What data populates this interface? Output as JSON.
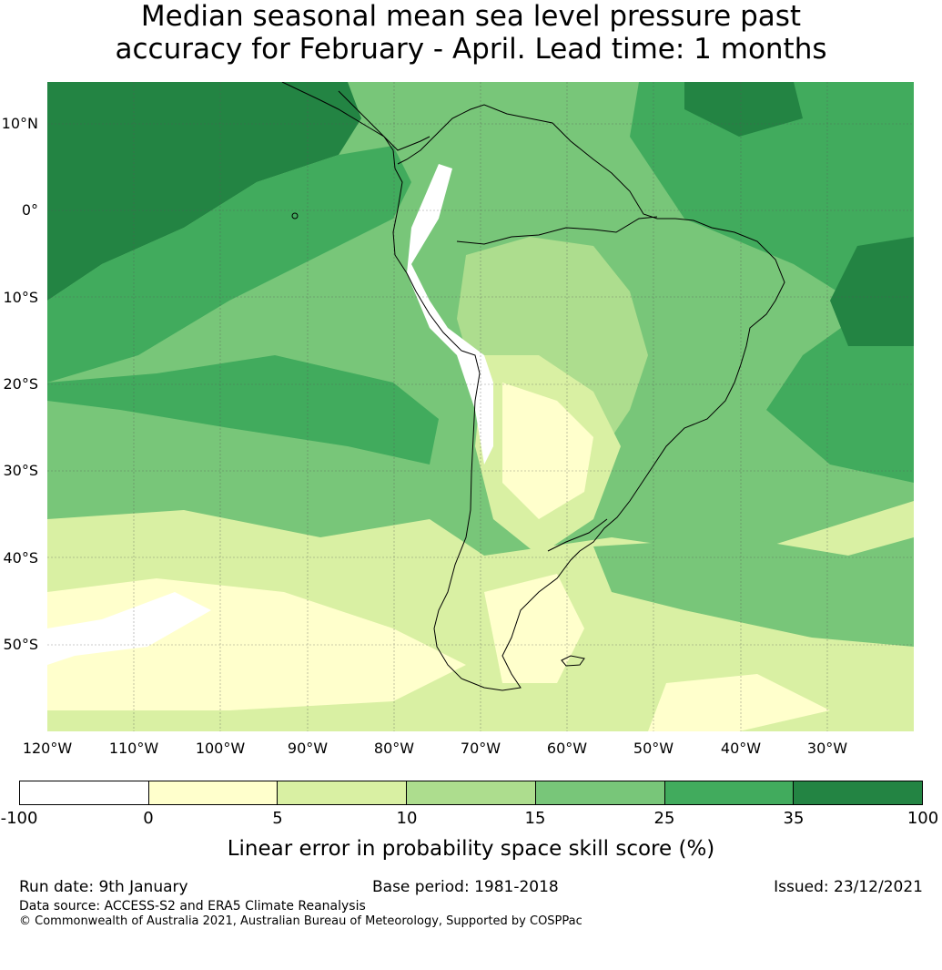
{
  "title": {
    "line1": "Median seasonal mean sea level pressure past",
    "line2": "accuracy for February - April. Lead time: 1 months"
  },
  "map": {
    "lat_labels": [
      "10°N",
      "0°",
      "10°S",
      "20°S",
      "30°S",
      "40°S",
      "50°S"
    ],
    "lon_labels": [
      "120°W",
      "110°W",
      "100°W",
      "90°W",
      "80°W",
      "70°W",
      "60°W",
      "50°W",
      "40°W",
      "30°W"
    ],
    "extent": {
      "lon_min": -120,
      "lon_max": -20,
      "lat_min": -60,
      "lat_max": 15
    }
  },
  "colorbar": {
    "label": "Linear error in probability space skill score (%)",
    "ticks": [
      "-100",
      "0",
      "5",
      "10",
      "15",
      "25",
      "35",
      "100"
    ],
    "colors": [
      "#ffffff",
      "#ffffcc",
      "#d9f0a3",
      "#addd8e",
      "#78c679",
      "#41ab5d",
      "#238443"
    ]
  },
  "footer": {
    "run_date": "Run date: 9th January",
    "base_period": "Base period: 1981-2018",
    "issued": "Issued: 23/12/2021",
    "data_source": "Data source: ACCESS-S2 and ERA5 Climate Reanalysis",
    "copyright": "© Commonwealth of Australia 2021, Australian Bureau of Meteorology, Supported by COSPPac"
  }
}
